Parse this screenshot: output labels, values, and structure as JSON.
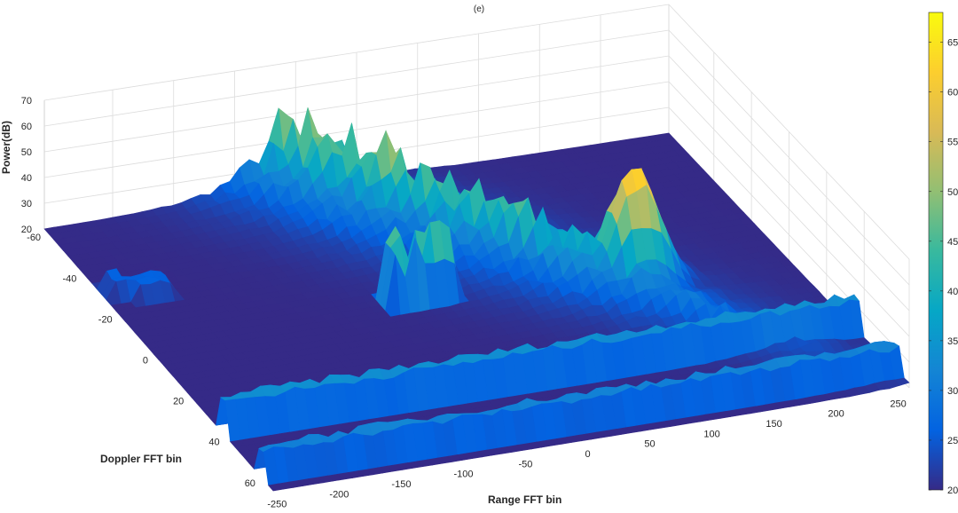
{
  "chart_data": {
    "type": "surface3d",
    "title": "(e)",
    "xlabel": "Range FFT bin",
    "ylabel": "Doppler FFT bin",
    "zlabel": "Power(dB)",
    "xlim": [
      -256,
      256
    ],
    "ylim": [
      -64,
      64
    ],
    "zlim": [
      20,
      70
    ],
    "xticks": [
      "-250",
      "-200",
      "-150",
      "-100",
      "-50",
      "0",
      "50",
      "100",
      "150",
      "200",
      "250"
    ],
    "yticks": [
      "-60",
      "-40",
      "-20",
      "0",
      "20",
      "40",
      "60"
    ],
    "zticks": [
      "20",
      "30",
      "40",
      "50",
      "60",
      "70"
    ],
    "colorbar": {
      "colormap": "parula",
      "range": [
        20,
        68
      ],
      "ticks": [
        "20",
        "25",
        "30",
        "35",
        "40",
        "45",
        "50",
        "55",
        "60",
        "65"
      ]
    },
    "features": [
      {
        "kind": "noise-floor",
        "power_db": 20
      },
      {
        "kind": "diagonal-ridge",
        "from_range": -60,
        "from_doppler": -64,
        "to_range": 256,
        "to_doppler": 64,
        "peak_power_db": 60
      },
      {
        "kind": "spike-cluster",
        "range": -60,
        "doppler": -8,
        "peak_power_db": 50
      },
      {
        "kind": "peak",
        "range": 130,
        "doppler": 0,
        "peak_power_db": 68
      },
      {
        "kind": "doppler-band",
        "doppler": 35,
        "power_db": 32
      },
      {
        "kind": "doppler-band",
        "doppler": 57,
        "power_db": 30
      },
      {
        "kind": "streak",
        "range": -230,
        "doppler": -30,
        "power_db": 25
      }
    ]
  },
  "colors": {
    "parula": [
      "#352a87",
      "#0363e1",
      "#1485d4",
      "#06a7c6",
      "#38b99e",
      "#92bf73",
      "#d9ba56",
      "#fcce2e",
      "#f9fb0e"
    ]
  }
}
